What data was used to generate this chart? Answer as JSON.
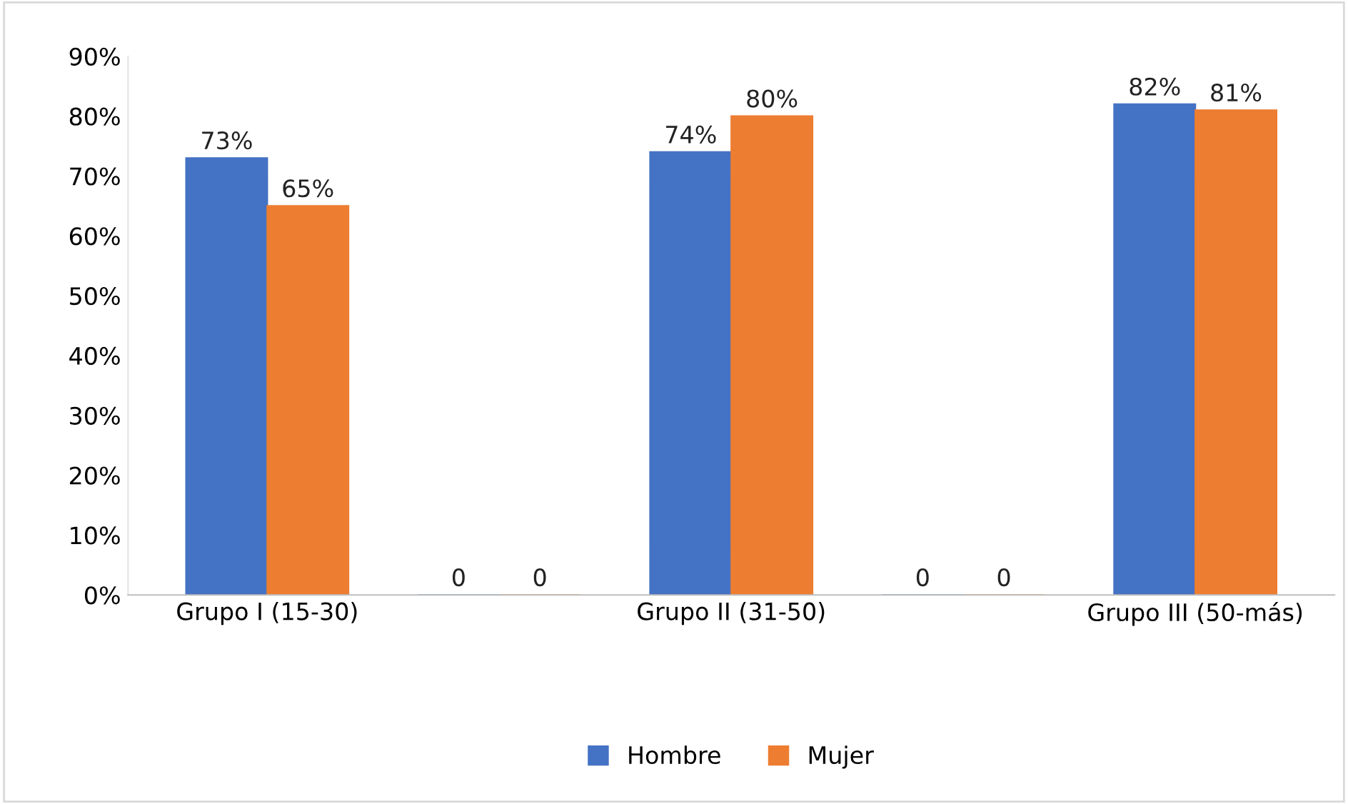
{
  "chart_data": {
    "type": "bar",
    "categories": [
      "Grupo I (15-30)",
      null,
      "Grupo II (31-50)",
      null,
      "Grupo III (50-más)"
    ],
    "series": [
      {
        "name": "Hombre",
        "color": "#4472c4",
        "values": [
          73,
          0,
          74,
          0,
          82
        ],
        "value_labels": [
          "73%",
          "0",
          "74%",
          "0",
          "82%"
        ]
      },
      {
        "name": "Mujer",
        "color": "#ed7d31",
        "values": [
          65,
          0,
          80,
          0,
          81
        ],
        "value_labels": [
          "65%",
          "0",
          "80%",
          "0",
          "81%"
        ]
      }
    ],
    "ylim": [
      0,
      90
    ],
    "yticks": [
      {
        "value": 0,
        "label": "0%"
      },
      {
        "value": 10,
        "label": "10%"
      },
      {
        "value": 20,
        "label": "20%"
      },
      {
        "value": 30,
        "label": "30%"
      },
      {
        "value": 40,
        "label": "40%"
      },
      {
        "value": 50,
        "label": "50%"
      },
      {
        "value": 60,
        "label": "60%"
      },
      {
        "value": 70,
        "label": "70%"
      },
      {
        "value": 80,
        "label": "80%"
      },
      {
        "value": 90,
        "label": "90%"
      }
    ],
    "legend": "bottom",
    "grid": false
  }
}
